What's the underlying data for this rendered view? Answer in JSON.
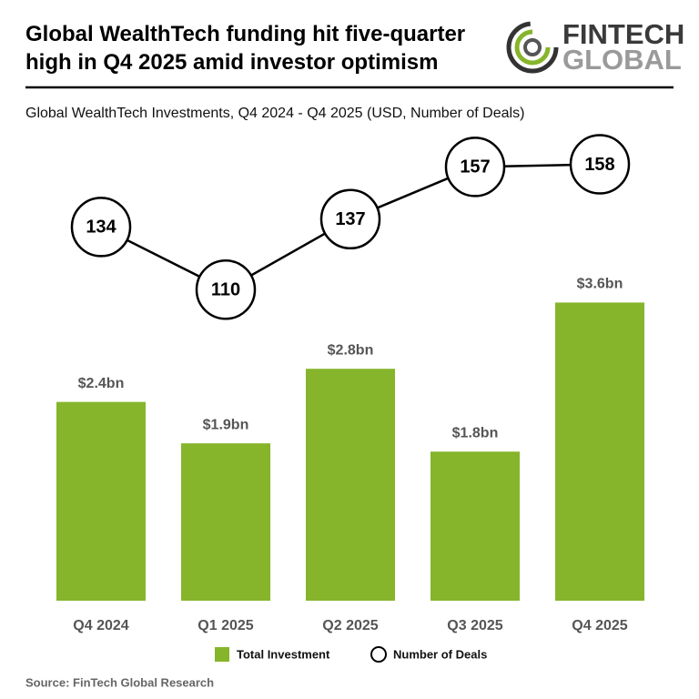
{
  "title": "Global WealthTech funding hit five-quarter high in Q4 2025 amid investor optimism",
  "logo": {
    "top": "FINTECH",
    "bottom": "GLOBAL"
  },
  "source": "Source: FinTech Global Research",
  "chart_data": {
    "type": "bar",
    "subtitle": "Global WealthTech Investments, Q4 2024 - Q4 2025 (USD, Number of Deals)",
    "categories": [
      "Q4 2024",
      "Q1 2025",
      "Q2 2025",
      "Q3 2025",
      "Q4 2025"
    ],
    "series": [
      {
        "name": "Total Investment",
        "color": "#86b52b",
        "values": [
          2.4,
          1.9,
          2.8,
          1.8,
          3.6
        ],
        "value_labels": [
          "$2.4bn",
          "$1.9bn",
          "$2.8bn",
          "$1.8bn",
          "$3.6bn"
        ]
      },
      {
        "name": "Number of Deals",
        "type": "line",
        "color": "#000000",
        "values": [
          134,
          110,
          137,
          157,
          158
        ]
      }
    ]
  }
}
